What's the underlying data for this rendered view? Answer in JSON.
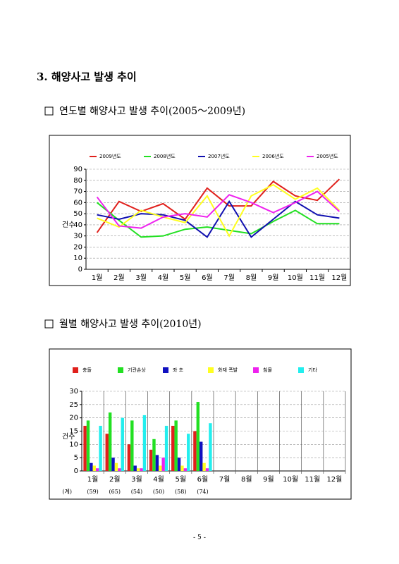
{
  "heading": "3. 해양사고 발생 추이",
  "subheadings": [
    "연도별 해양사고 발생 추이(2005～2009년)",
    "월별 해양사고 발생 추이(2010년)"
  ],
  "chart_data": [
    {
      "type": "line",
      "y_label": "건수",
      "categories": [
        "1월",
        "2월",
        "3월",
        "4월",
        "5월",
        "6월",
        "7월",
        "8월",
        "9월",
        "10월",
        "11월",
        "12월"
      ],
      "ylim": [
        0,
        90
      ],
      "yticks": [
        0,
        10,
        20,
        30,
        40,
        50,
        60,
        70,
        80,
        90
      ],
      "grid": true,
      "series": [
        {
          "name": "2009년도",
          "color": "#e0201c",
          "values": [
            33,
            61,
            52,
            59,
            45,
            73,
            57,
            57,
            79,
            66,
            62,
            81
          ]
        },
        {
          "name": "2008년도",
          "color": "#22e022",
          "values": [
            60,
            44,
            29,
            30,
            36,
            38,
            35,
            32,
            43,
            53,
            41,
            41
          ]
        },
        {
          "name": "2007년도",
          "color": "#1010b0",
          "values": [
            49,
            45,
            50,
            49,
            44,
            29,
            61,
            29,
            45,
            61,
            49,
            46
          ]
        },
        {
          "name": "2006년도",
          "color": "#ffff20",
          "values": [
            46,
            38,
            53,
            47,
            42,
            66,
            30,
            66,
            76,
            63,
            73,
            53
          ]
        },
        {
          "name": "2005년도",
          "color": "#ee22ee",
          "values": [
            65,
            39,
            37,
            47,
            50,
            47,
            67,
            60,
            51,
            60,
            70,
            52
          ]
        }
      ]
    },
    {
      "type": "bar",
      "y_label": "건수",
      "categories": [
        "1월",
        "2월",
        "3월",
        "4월",
        "5월",
        "6월",
        "7월",
        "8월",
        "9월",
        "10월",
        "11월",
        "12월"
      ],
      "ylim": [
        0,
        30
      ],
      "yticks": [
        0,
        5,
        10,
        15,
        20,
        25,
        30
      ],
      "grid": true,
      "series": [
        {
          "name": "충돌",
          "color": "#e0201c",
          "values": [
            17,
            14,
            10,
            8,
            17,
            15,
            null,
            null,
            null,
            null,
            null,
            null
          ]
        },
        {
          "name": "기관손상",
          "color": "#22e022",
          "values": [
            19,
            22,
            19,
            12,
            19,
            26,
            null,
            null,
            null,
            null,
            null,
            null
          ]
        },
        {
          "name": "좌 초",
          "color": "#1010c0",
          "values": [
            3,
            5,
            2,
            6,
            5,
            11,
            null,
            null,
            null,
            null,
            null,
            null
          ]
        },
        {
          "name": "화재 폭발",
          "color": "#ffff20",
          "values": [
            2,
            3,
            1,
            2,
            2,
            3,
            null,
            null,
            null,
            null,
            null,
            null
          ]
        },
        {
          "name": "침몰",
          "color": "#ee22ee",
          "values": [
            1,
            1,
            1,
            5,
            1,
            1,
            null,
            null,
            null,
            null,
            null,
            null
          ]
        },
        {
          "name": "기타",
          "color": "#22eeee",
          "values": [
            17,
            20,
            21,
            17,
            14,
            18,
            null,
            null,
            null,
            null,
            null,
            null
          ]
        }
      ],
      "totals_label": "(계)",
      "totals": [
        "(59)",
        "(65)",
        "(54)",
        "(50)",
        "(58)",
        "(74)"
      ]
    }
  ],
  "page_number": "- 5 -"
}
